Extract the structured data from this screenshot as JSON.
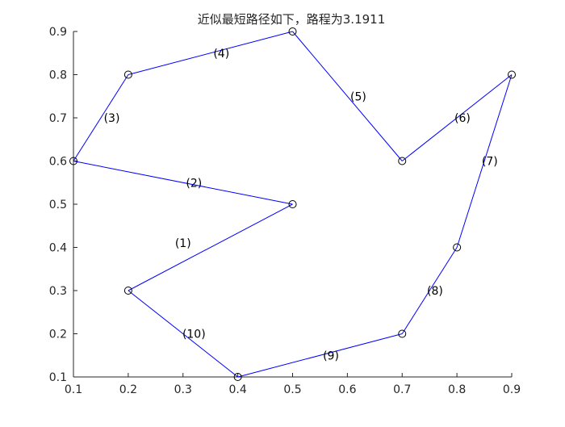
{
  "chart_data": {
    "type": "line",
    "title": "近似最短路径如下，路程为3.1911",
    "xlabel": "",
    "ylabel": "",
    "xlim": [
      0.1,
      0.9
    ],
    "ylim": [
      0.1,
      0.9
    ],
    "xticks": [
      "0.1",
      "0.2",
      "0.3",
      "0.4",
      "0.5",
      "0.6",
      "0.7",
      "0.8",
      "0.9"
    ],
    "yticks": [
      "0.1",
      "0.2",
      "0.3",
      "0.4",
      "0.5",
      "0.6",
      "0.7",
      "0.8",
      "0.9"
    ],
    "grid": false,
    "line_color": "#0000ff",
    "marker": "circle",
    "route": [
      {
        "x": 0.5,
        "y": 0.5
      },
      {
        "x": 0.1,
        "y": 0.6
      },
      {
        "x": 0.2,
        "y": 0.8
      },
      {
        "x": 0.5,
        "y": 0.9
      },
      {
        "x": 0.7,
        "y": 0.6
      },
      {
        "x": 0.9,
        "y": 0.8
      },
      {
        "x": 0.8,
        "y": 0.4
      },
      {
        "x": 0.7,
        "y": 0.2
      },
      {
        "x": 0.4,
        "y": 0.1
      },
      {
        "x": 0.2,
        "y": 0.3
      },
      {
        "x": 0.5,
        "y": 0.5
      }
    ],
    "segment_labels": [
      {
        "text": "(1)",
        "x": 0.3,
        "y": 0.41
      },
      {
        "text": "(2)",
        "x": 0.32,
        "y": 0.55
      },
      {
        "text": "(3)",
        "x": 0.17,
        "y": 0.7
      },
      {
        "text": "(4)",
        "x": 0.37,
        "y": 0.85
      },
      {
        "text": "(5)",
        "x": 0.62,
        "y": 0.75
      },
      {
        "text": "(6)",
        "x": 0.81,
        "y": 0.7
      },
      {
        "text": "(7)",
        "x": 0.86,
        "y": 0.6
      },
      {
        "text": "(8)",
        "x": 0.76,
        "y": 0.3
      },
      {
        "text": "(9)",
        "x": 0.57,
        "y": 0.15
      },
      {
        "text": "(10)",
        "x": 0.32,
        "y": 0.2
      }
    ]
  }
}
